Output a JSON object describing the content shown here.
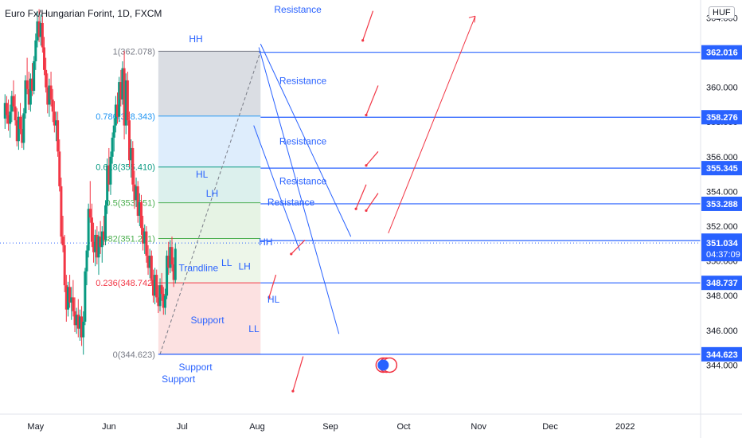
{
  "header": {
    "symbol_title": "Euro Fx/Hungarian Forint, 1D, FXCM",
    "currency_button": "HUF"
  },
  "chart_data": {
    "type": "candlestick",
    "title": "Euro Fx/Hungarian Forint, 1D, FXCM",
    "ylim": [
      343.5,
      366.0
    ],
    "y_ticks": [
      344,
      346,
      348,
      350,
      352,
      354,
      356,
      358,
      360,
      362,
      364
    ],
    "y_tick_labels": [
      "344.000",
      "346.000",
      "348.000",
      "350.000",
      "352.000",
      "354.000",
      "356.000",
      "358.000",
      "360.000",
      "362.000",
      "364.000"
    ],
    "x_labels": [
      "May",
      "Jun",
      "Jul",
      "Aug",
      "Sep",
      "Oct",
      "Nov",
      "Dec",
      "2022"
    ],
    "x_label_day_index": [
      20,
      63,
      106,
      150,
      193,
      236,
      280,
      322,
      366
    ],
    "x_range_days": [
      0,
      388
    ],
    "candles_ohlc": [
      [
        358.2,
        359.6,
        357.6,
        359.1
      ],
      [
        359.1,
        359.5,
        357.9,
        358.4
      ],
      [
        358.4,
        359.3,
        357.5,
        357.9
      ],
      [
        357.9,
        359.0,
        357.1,
        358.6
      ],
      [
        358.6,
        359.8,
        358.0,
        359.5
      ],
      [
        359.5,
        360.4,
        358.6,
        358.9
      ],
      [
        358.9,
        359.6,
        357.8,
        358.1
      ],
      [
        358.1,
        358.8,
        356.6,
        356.9
      ],
      [
        356.9,
        358.6,
        356.4,
        358.3
      ],
      [
        358.3,
        359.1,
        357.3,
        357.6
      ],
      [
        357.6,
        358.4,
        356.5,
        356.8
      ],
      [
        356.8,
        358.8,
        356.4,
        358.5
      ],
      [
        358.5,
        360.7,
        358.2,
        360.4
      ],
      [
        360.4,
        361.7,
        359.6,
        359.9
      ],
      [
        359.9,
        360.9,
        358.7,
        359.0
      ],
      [
        359.0,
        360.8,
        358.6,
        360.5
      ],
      [
        360.5,
        361.4,
        359.5,
        359.8
      ],
      [
        359.8,
        361.8,
        359.6,
        361.5
      ],
      [
        361.5,
        363.1,
        361.0,
        362.7
      ],
      [
        362.7,
        364.4,
        362.3,
        363.8
      ],
      [
        363.8,
        364.5,
        362.6,
        362.9
      ],
      [
        362.9,
        364.2,
        362.4,
        363.7
      ],
      [
        363.7,
        364.1,
        362.0,
        362.3
      ],
      [
        362.3,
        362.9,
        360.7,
        361.0
      ],
      [
        361.0,
        361.7,
        359.7,
        360.0
      ],
      [
        360.0,
        360.8,
        358.5,
        359.0
      ],
      [
        359.0,
        360.5,
        358.3,
        360.1
      ],
      [
        360.1,
        360.9,
        358.9,
        359.3
      ],
      [
        359.3,
        359.9,
        358.0,
        358.6
      ],
      [
        358.6,
        359.2,
        357.4,
        357.8
      ],
      [
        357.8,
        358.6,
        356.9,
        358.1
      ],
      [
        358.1,
        358.6,
        356.0,
        356.3
      ],
      [
        356.3,
        357.0,
        354.0,
        354.3
      ],
      [
        354.3,
        354.8,
        351.0,
        351.4
      ],
      [
        351.4,
        352.6,
        350.5,
        350.9
      ],
      [
        350.9,
        351.5,
        348.2,
        348.6
      ],
      [
        348.6,
        349.2,
        346.5,
        347.2
      ],
      [
        347.2,
        348.8,
        346.8,
        348.5
      ],
      [
        348.5,
        349.2,
        347.3,
        347.6
      ],
      [
        347.6,
        348.5,
        346.6,
        347.9
      ],
      [
        347.9,
        348.9,
        346.8,
        347.1
      ],
      [
        347.1,
        347.9,
        345.9,
        346.3
      ],
      [
        346.3,
        347.3,
        345.8,
        346.9
      ],
      [
        346.9,
        347.8,
        345.6,
        346.1
      ],
      [
        346.1,
        347.2,
        345.4,
        346.8
      ],
      [
        346.8,
        347.4,
        345.1,
        345.6
      ],
      [
        345.6,
        347.1,
        344.6,
        346.5
      ],
      [
        346.5,
        349.6,
        346.3,
        349.4
      ],
      [
        349.4,
        350.9,
        348.6,
        350.6
      ],
      [
        350.6,
        353.3,
        350.2,
        353.0
      ],
      [
        353.0,
        354.6,
        352.2,
        352.5
      ],
      [
        352.5,
        353.3,
        350.8,
        351.1
      ],
      [
        351.1,
        352.2,
        349.9,
        350.5
      ],
      [
        350.5,
        351.8,
        349.7,
        351.5
      ],
      [
        351.5,
        352.0,
        349.8,
        350.2
      ],
      [
        350.2,
        351.7,
        349.2,
        351.4
      ],
      [
        351.4,
        352.3,
        350.4,
        350.8
      ],
      [
        350.8,
        352.0,
        349.9,
        351.7
      ],
      [
        351.7,
        352.6,
        350.9,
        351.2
      ],
      [
        351.2,
        353.5,
        350.9,
        353.2
      ],
      [
        353.2,
        355.9,
        352.7,
        355.5
      ],
      [
        355.5,
        356.5,
        354.0,
        354.4
      ],
      [
        354.4,
        356.3,
        353.8,
        356.0
      ],
      [
        356.0,
        357.4,
        355.6,
        357.1
      ],
      [
        357.1,
        358.2,
        356.3,
        357.8
      ],
      [
        357.8,
        359.5,
        357.4,
        359.0
      ],
      [
        359.0,
        359.7,
        357.9,
        358.3
      ],
      [
        358.3,
        360.6,
        358.0,
        360.3
      ],
      [
        360.3,
        361.0,
        358.9,
        359.3
      ],
      [
        359.3,
        361.5,
        359.0,
        361.1
      ],
      [
        361.1,
        362.1,
        357.0,
        357.8
      ],
      [
        357.8,
        360.8,
        357.3,
        360.4
      ],
      [
        360.4,
        360.9,
        357.8,
        358.1
      ],
      [
        358.1,
        358.6,
        355.4,
        355.8
      ],
      [
        355.8,
        357.0,
        354.8,
        356.5
      ],
      [
        356.5,
        356.9,
        354.0,
        354.4
      ],
      [
        354.4,
        355.2,
        353.0,
        353.5
      ],
      [
        353.5,
        354.8,
        353.1,
        354.3
      ],
      [
        354.3,
        354.6,
        352.2,
        352.6
      ],
      [
        352.6,
        353.9,
        352.0,
        353.4
      ],
      [
        353.4,
        353.8,
        351.5,
        351.9
      ],
      [
        351.9,
        352.6,
        350.6,
        351.0
      ],
      [
        351.0,
        352.1,
        350.4,
        351.7
      ],
      [
        351.7,
        352.0,
        349.9,
        350.3
      ],
      [
        350.3,
        350.9,
        349.2,
        349.6
      ],
      [
        349.6,
        350.7,
        349.0,
        350.3
      ],
      [
        350.3,
        350.6,
        348.6,
        348.9
      ],
      [
        348.9,
        349.5,
        347.6,
        348.0
      ],
      [
        348.0,
        349.6,
        347.5,
        349.2
      ],
      [
        349.2,
        349.5,
        347.6,
        347.9
      ],
      [
        347.9,
        348.6,
        347.0,
        347.4
      ],
      [
        347.4,
        349.0,
        347.1,
        348.6
      ],
      [
        348.6,
        349.3,
        347.7,
        348.1
      ],
      [
        348.1,
        348.5,
        346.9,
        347.3
      ],
      [
        347.3,
        348.4,
        346.9,
        348.0
      ],
      [
        348.0,
        350.6,
        347.8,
        350.3
      ],
      [
        350.3,
        351.1,
        349.2,
        349.6
      ],
      [
        349.6,
        351.2,
        349.3,
        350.8
      ],
      [
        350.8,
        351.4,
        349.4,
        349.8
      ],
      [
        349.8,
        350.2,
        348.5,
        348.9
      ],
      [
        348.9,
        351.0,
        348.7,
        350.7
      ]
    ],
    "fibonacci_levels": [
      {
        "ratio": "1",
        "value": 362.078,
        "label": "1(362.078)",
        "color": "#787b86"
      },
      {
        "ratio": "0.786",
        "value": 358.343,
        "label": "0.786(358.343)",
        "color": "#2196f3"
      },
      {
        "ratio": "0.618",
        "value": 355.41,
        "label": "0.618(355.410)",
        "color": "#089981"
      },
      {
        "ratio": "0.5",
        "value": 353.351,
        "label": "0.5(353.351)",
        "color": "#4caf50"
      },
      {
        "ratio": "0.382",
        "value": 351.291,
        "label": "0.382(351.291)",
        "color": "#4caf50"
      },
      {
        "ratio": "0.236",
        "value": 348.742,
        "label": "0.236(348.742)",
        "color": "#f23645"
      },
      {
        "ratio": "0",
        "value": 344.623,
        "label": "0(344.623)",
        "color": "#787b86"
      }
    ],
    "horizontal_levels": [
      362.016,
      358.276,
      355.345,
      353.288,
      351.169,
      348.737,
      344.623
    ],
    "price_labels": [
      {
        "value": 362.016,
        "text": "362.016"
      },
      {
        "value": 358.276,
        "text": "358.276"
      },
      {
        "value": 355.345,
        "text": "355.345"
      },
      {
        "value": 353.288,
        "text": "353.288"
      },
      {
        "value": 351.169,
        "text": "351.169"
      },
      {
        "value": 348.737,
        "text": "348.737"
      },
      {
        "value": 344.623,
        "text": "344.623"
      }
    ],
    "last_price": {
      "value": 351.034,
      "text": "351.034",
      "countdown": "04:37:09"
    },
    "annotations": [
      {
        "text": "HH",
        "x": 110,
        "y": 362.6
      },
      {
        "text": "HL",
        "x": 114,
        "y": 354.8
      },
      {
        "text": "LH",
        "x": 120,
        "y": 353.7
      },
      {
        "text": "LL",
        "x": 129,
        "y": 349.7
      },
      {
        "text": "LH",
        "x": 139,
        "y": 349.5
      },
      {
        "text": "HH",
        "x": 151,
        "y": 350.9
      },
      {
        "text": "LL",
        "x": 145,
        "y": 345.9
      },
      {
        "text": "HL",
        "x": 156,
        "y": 347.6
      },
      {
        "text": "Resistance",
        "x": 160,
        "y": 364.3
      },
      {
        "text": "Resistance",
        "x": 163,
        "y": 360.2
      },
      {
        "text": "Resistance",
        "x": 163,
        "y": 356.7
      },
      {
        "text": "Resistance",
        "x": 163,
        "y": 354.4
      },
      {
        "text": "Resistance",
        "x": 156,
        "y": 353.2
      },
      {
        "text": "Trandline",
        "x": 104,
        "y": 349.4
      },
      {
        "text": "Support",
        "x": 111,
        "y": 346.4
      },
      {
        "text": "Support",
        "x": 104,
        "y": 343.7
      },
      {
        "text": "Support",
        "x": 94,
        "y": 343.0
      }
    ]
  }
}
